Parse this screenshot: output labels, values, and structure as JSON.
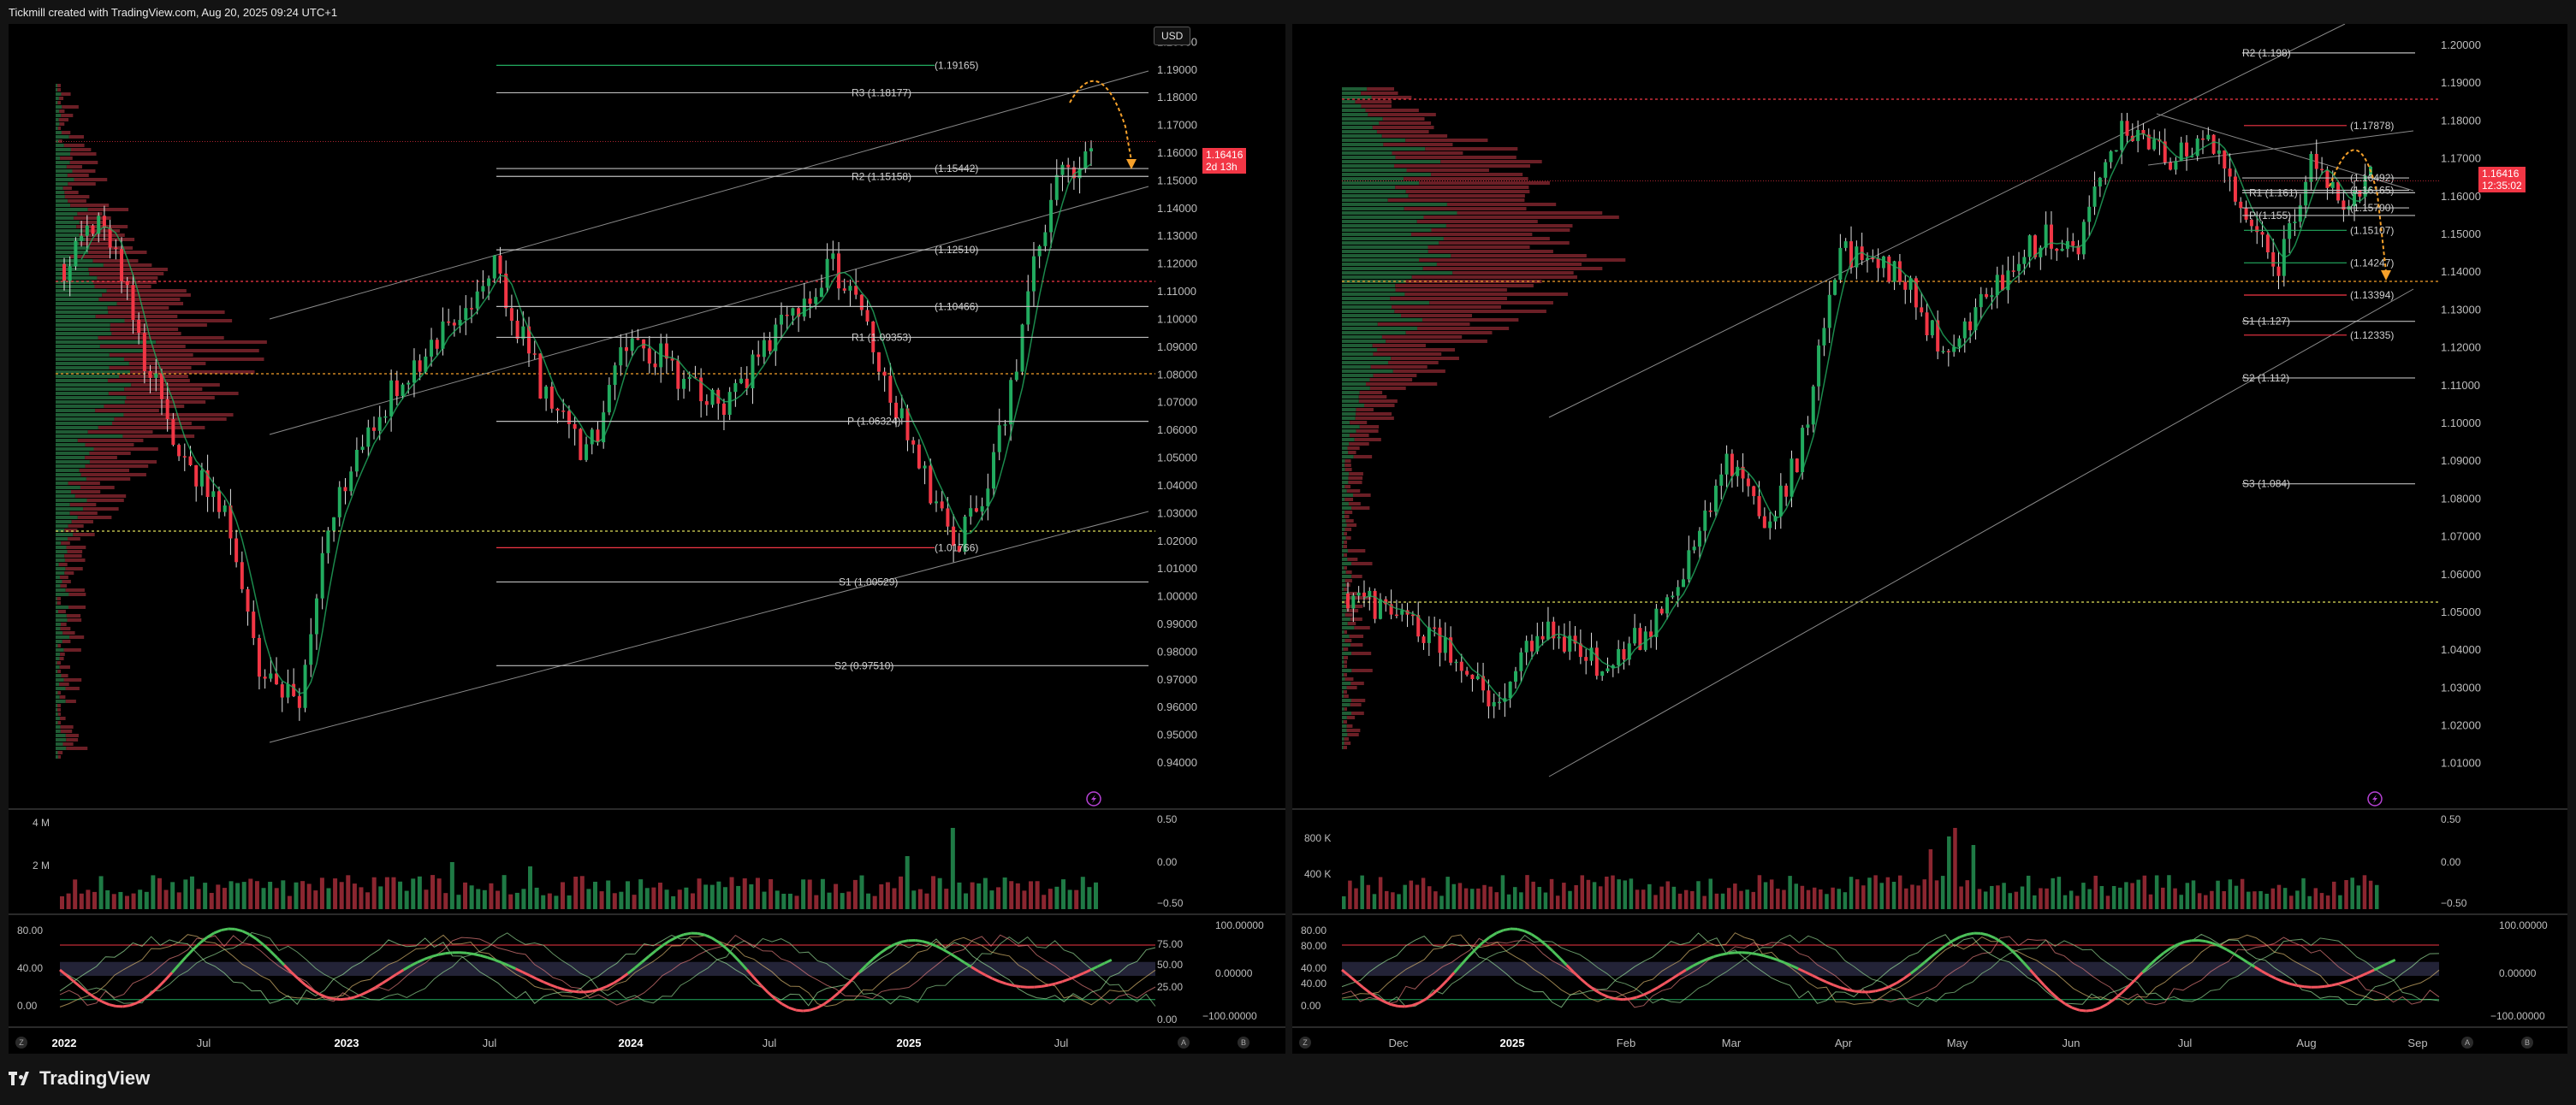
{
  "header": {
    "title": "Tickmill created with TradingView.com, Aug 20, 2025 09:24 UTC+1"
  },
  "footer": {
    "brand": "TradingView"
  },
  "colors": {
    "up": "#22ab5f",
    "down": "#f23645",
    "accent_orange": "#f6a12a",
    "pivot_line": "#bdbdbd"
  },
  "left": {
    "currency_button": "USD",
    "price_tag": "1.16416\n2d 13h",
    "price_axis": [
      "1.20000",
      "1.19000",
      "1.18000",
      "1.17000",
      "1.16000",
      "1.15000",
      "1.14000",
      "1.13000",
      "1.12000",
      "1.11000",
      "1.10000",
      "1.09000",
      "1.08000",
      "1.07000",
      "1.06000",
      "1.05000",
      "1.04000",
      "1.03000",
      "1.02000",
      "1.01000",
      "1.00000",
      "0.99000",
      "0.98000",
      "0.97000",
      "0.96000",
      "0.95000",
      "0.94000"
    ],
    "levels": [
      {
        "label": "(1.19165)",
        "price": 1.19165,
        "color": "#22ab5f"
      },
      {
        "label": "R3 (1.18177)",
        "price": 1.18177,
        "color": "#bdbdbd"
      },
      {
        "label": "(1.15442)",
        "price": 1.15442,
        "color": "#bdbdbd"
      },
      {
        "label": "R2 (1.15158)",
        "price": 1.15158,
        "color": "#bdbdbd"
      },
      {
        "label": "(1.12510)",
        "price": 1.1251,
        "color": "#bdbdbd"
      },
      {
        "label": "(1.10466)",
        "price": 1.10466,
        "color": "#bdbdbd"
      },
      {
        "label": "R1 (1.09353)",
        "price": 1.09353,
        "color": "#bdbdbd"
      },
      {
        "label": "P (1.06324)",
        "price": 1.06324,
        "color": "#bdbdbd"
      },
      {
        "label": "(1.01766)",
        "price": 1.01766,
        "color": "#f23645"
      },
      {
        "label": "S1 (1.00529)",
        "price": 1.00529,
        "color": "#bdbdbd"
      },
      {
        "label": "S2 (0.97510)",
        "price": 0.9751,
        "color": "#bdbdbd"
      }
    ],
    "volume_axis": [
      "4 M",
      "2 M"
    ],
    "oscillator_axis_mid": [
      "0.50",
      "0.00",
      "−0.50"
    ],
    "oscillator_axis_left": [
      "80.00",
      "40.00",
      "0.00"
    ],
    "oscillator_axis_right": [
      "100.00000",
      "75.00",
      "50.00",
      "25.00",
      "0.00000",
      "0.00",
      "−100.00000"
    ],
    "time_axis": [
      {
        "label": "2022",
        "bold": true
      },
      {
        "label": "Jul",
        "bold": false
      },
      {
        "label": "2023",
        "bold": true
      },
      {
        "label": "Jul",
        "bold": false
      },
      {
        "label": "2024",
        "bold": true
      },
      {
        "label": "Jul",
        "bold": false
      },
      {
        "label": "2025",
        "bold": true
      },
      {
        "label": "Jul",
        "bold": false
      }
    ]
  },
  "right": {
    "price_tag": "1.16416\n12:35:02",
    "price_axis": [
      "1.20000",
      "1.19000",
      "1.18000",
      "1.17000",
      "1.16000",
      "1.15000",
      "1.14000",
      "1.13000",
      "1.12000",
      "1.11000",
      "1.10000",
      "1.09000",
      "1.08000",
      "1.07000",
      "1.06000",
      "1.05000",
      "1.04000",
      "1.03000",
      "1.02000",
      "1.01000"
    ],
    "levels": [
      {
        "label": "R2 (1.198)",
        "price": 1.198,
        "color": "#bdbdbd"
      },
      {
        "label": "(1.17878)",
        "price": 1.17878,
        "color": "#f23645"
      },
      {
        "label": "(1.16492)",
        "price": 1.16492,
        "color": "#bdbdbd"
      },
      {
        "label": "(1.16165)",
        "price": 1.16165,
        "color": "#bdbdbd"
      },
      {
        "label": "R1 (1.161)",
        "price": 1.161,
        "color": "#bdbdbd"
      },
      {
        "label": "(1.15700)",
        "price": 1.157,
        "color": "#bdbdbd"
      },
      {
        "label": "P (1.155)",
        "price": 1.155,
        "color": "#bdbdbd"
      },
      {
        "label": "(1.15107)",
        "price": 1.15107,
        "color": "#22ab5f"
      },
      {
        "label": "(1.14247)",
        "price": 1.14247,
        "color": "#22ab5f"
      },
      {
        "label": "(1.13394)",
        "price": 1.13394,
        "color": "#f23645"
      },
      {
        "label": "S1 (1.127)",
        "price": 1.127,
        "color": "#bdbdbd"
      },
      {
        "label": "(1.12335)",
        "price": 1.12335,
        "color": "#f23645"
      },
      {
        "label": "S2 (1.112)",
        "price": 1.112,
        "color": "#bdbdbd"
      },
      {
        "label": "S3 (1.084)",
        "price": 1.084,
        "color": "#bdbdbd"
      }
    ],
    "volume_axis": [
      "800 K",
      "400 K"
    ],
    "oscillator_axis_mid": [
      "0.50",
      "0.00",
      "−0.50"
    ],
    "oscillator_axis_left": [
      "80.00",
      "40.00",
      "0.00"
    ],
    "oscillator_axis_right": [
      "100.00000",
      "80.00",
      "0.00000",
      "40.00",
      "−100.00000"
    ],
    "time_axis": [
      {
        "label": "Dec",
        "bold": false
      },
      {
        "label": "2025",
        "bold": true
      },
      {
        "label": "Feb",
        "bold": false
      },
      {
        "label": "Mar",
        "bold": false
      },
      {
        "label": "Apr",
        "bold": false
      },
      {
        "label": "May",
        "bold": false
      },
      {
        "label": "Jun",
        "bold": false
      },
      {
        "label": "Jul",
        "bold": false
      },
      {
        "label": "Aug",
        "bold": false
      },
      {
        "label": "Sep",
        "bold": false
      }
    ]
  },
  "bottom_buttons": [
    "Z",
    "A",
    "B"
  ]
}
